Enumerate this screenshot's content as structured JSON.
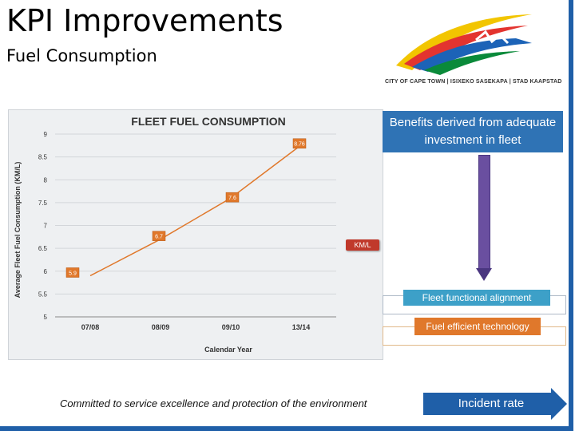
{
  "slide": {
    "title": "KPI Improvements",
    "subtitle": "Fuel Consumption",
    "logo_text": "CITY OF CAPE TOWN | ISIXEKO SASEKAPA | STAD KAAPSTAD",
    "benefits": "Benefits derived from adequate investment in fleet",
    "box1": "Fleet functional alignment",
    "box2": "Fuel efficient technology",
    "footer": "Committed to service excellence and protection of the environment",
    "incident": "Incident rate",
    "colors": {
      "accent": "#1f5fa8",
      "benefits": "#2f73b5",
      "box1": "#3da0c8",
      "box2": "#e0782b",
      "arrow": "#6a4fa0"
    }
  },
  "chart_data": {
    "type": "line",
    "title": "FLEET FUEL CONSUMPTION",
    "xlabel": "Calendar Year",
    "ylabel": "Average Fleet Fuel Consumption  (KM/L)",
    "categories": [
      "07/08",
      "08/09",
      "09/10",
      "13/14"
    ],
    "series": [
      {
        "name": "KM/L",
        "values": [
          5.9,
          6.7,
          7.6,
          8.76
        ],
        "labels": [
          "5.9",
          "6.7",
          "7.6",
          "8.76"
        ],
        "color": "#e0782b"
      }
    ],
    "ylim": [
      5,
      9
    ],
    "yticks": [
      "5",
      "5.5",
      "6",
      "6.5",
      "7",
      "7.5",
      "8",
      "8.5",
      "9"
    ],
    "grid": true,
    "legend": "right"
  }
}
